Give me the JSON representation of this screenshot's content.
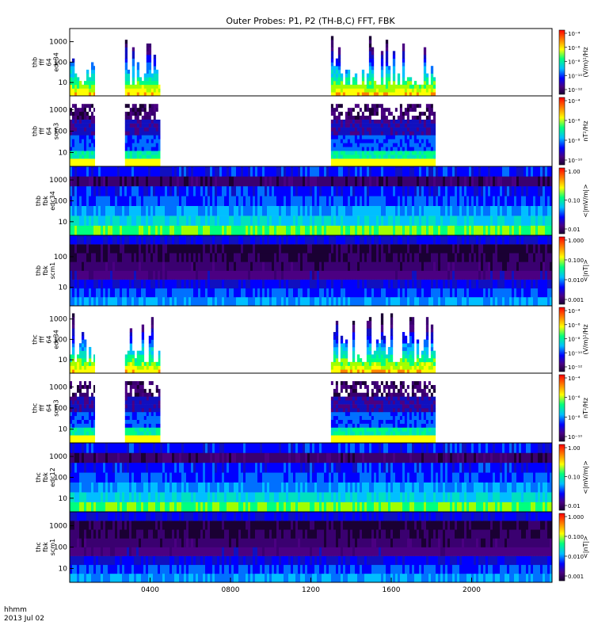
{
  "title": "Outer Probes: P1, P2 (TH-B,C) FFT, FBK",
  "footer": {
    "line1": "hhmm",
    "line2": "2013 Jul 02"
  },
  "x_axis": {
    "ticks": [
      "0400",
      "0800",
      "1200",
      "1600",
      "2000"
    ],
    "tick_hours": [
      4,
      8,
      12,
      16,
      20
    ],
    "range_hours": [
      0,
      24
    ]
  },
  "colors": {
    "white": "#ffffff",
    "fill_low": "#2a0a3a"
  },
  "chart_data": [
    {
      "type": "heatmap",
      "ylabel": [
        "thb",
        "fff",
        "64",
        "edc34"
      ],
      "yticks": [
        "10",
        "100",
        "1000"
      ],
      "colorbar": {
        "label": "(V/m)²/Hz",
        "ticks": [
          "10⁻⁴",
          "10⁻⁶",
          "10⁻⁸",
          "10⁻¹⁰",
          "10⁻¹²"
        ]
      },
      "kind": "fft_e",
      "data_intervals_hours": [
        [
          0,
          1.25
        ],
        [
          2.75,
          4.5
        ],
        [
          13.0,
          18.2
        ]
      ]
    },
    {
      "type": "heatmap",
      "ylabel": [
        "thb",
        "fff",
        "64",
        "scm3"
      ],
      "yticks": [
        "10",
        "100",
        "1000"
      ],
      "colorbar": {
        "label": "nT²/Hz",
        "ticks": [
          "10⁻⁴",
          "10⁻⁶",
          "10⁻⁸",
          "10⁻¹⁰"
        ]
      },
      "kind": "fft_b",
      "data_intervals_hours": [
        [
          0,
          1.25
        ],
        [
          2.75,
          4.5
        ],
        [
          13.0,
          18.2
        ]
      ]
    },
    {
      "type": "heatmap",
      "ylabel": [
        "thb",
        "fbk",
        "edc34"
      ],
      "yticks": [
        "10",
        "100",
        "1000"
      ],
      "colorbar": {
        "label": "<|mV/m|>",
        "ticks": [
          "1.00",
          "0.10",
          "0.01"
        ]
      },
      "kind": "fbk_e",
      "data_intervals_hours": [
        [
          0,
          24
        ]
      ]
    },
    {
      "type": "heatmap",
      "ylabel": [
        "thb",
        "fbk",
        "scm1"
      ],
      "yticks": [
        "10",
        "100"
      ],
      "colorbar": {
        "label": "<|nT|>",
        "ticks": [
          "1.000",
          "0.100",
          "0.010",
          "0.001"
        ]
      },
      "kind": "fbk_b",
      "data_intervals_hours": [
        [
          0,
          24
        ]
      ]
    },
    {
      "type": "heatmap",
      "ylabel": [
        "thc",
        "fff",
        "64",
        "edc34"
      ],
      "yticks": [
        "10",
        "100",
        "1000"
      ],
      "colorbar": {
        "label": "(V/m)²/Hz",
        "ticks": [
          "10⁻⁴",
          "10⁻⁶",
          "10⁻⁸",
          "10⁻¹⁰",
          "10⁻¹²"
        ]
      },
      "kind": "fft_e",
      "data_intervals_hours": [
        [
          0,
          1.25
        ],
        [
          2.75,
          4.5
        ],
        [
          13.0,
          18.2
        ]
      ]
    },
    {
      "type": "heatmap",
      "ylabel": [
        "thc",
        "fff",
        "64",
        "scm3"
      ],
      "yticks": [
        "10",
        "100",
        "1000"
      ],
      "colorbar": {
        "label": "nT²/Hz",
        "ticks": [
          "10⁻⁴",
          "10⁻⁶",
          "10⁻⁸",
          "10⁻¹⁰"
        ]
      },
      "kind": "fft_b",
      "data_intervals_hours": [
        [
          0,
          1.25
        ],
        [
          2.75,
          4.5
        ],
        [
          13.0,
          18.2
        ]
      ]
    },
    {
      "type": "heatmap",
      "ylabel": [
        "thc",
        "fbk",
        "edc12"
      ],
      "yticks": [
        "10",
        "100",
        "1000"
      ],
      "colorbar": {
        "label": "<|mV/m|>",
        "ticks": [
          "1.00",
          "0.10",
          "0.01"
        ]
      },
      "kind": "fbk_e",
      "data_intervals_hours": [
        [
          0,
          24
        ]
      ]
    },
    {
      "type": "heatmap",
      "ylabel": [
        "thc",
        "fbk",
        "scm1"
      ],
      "yticks": [
        "10",
        "100",
        "1000"
      ],
      "colorbar": {
        "label": "<|nT|>",
        "ticks": [
          "1.000",
          "0.100",
          "0.010",
          "0.001"
        ]
      },
      "kind": "fbk_b",
      "data_intervals_hours": [
        [
          0,
          24
        ]
      ]
    }
  ]
}
